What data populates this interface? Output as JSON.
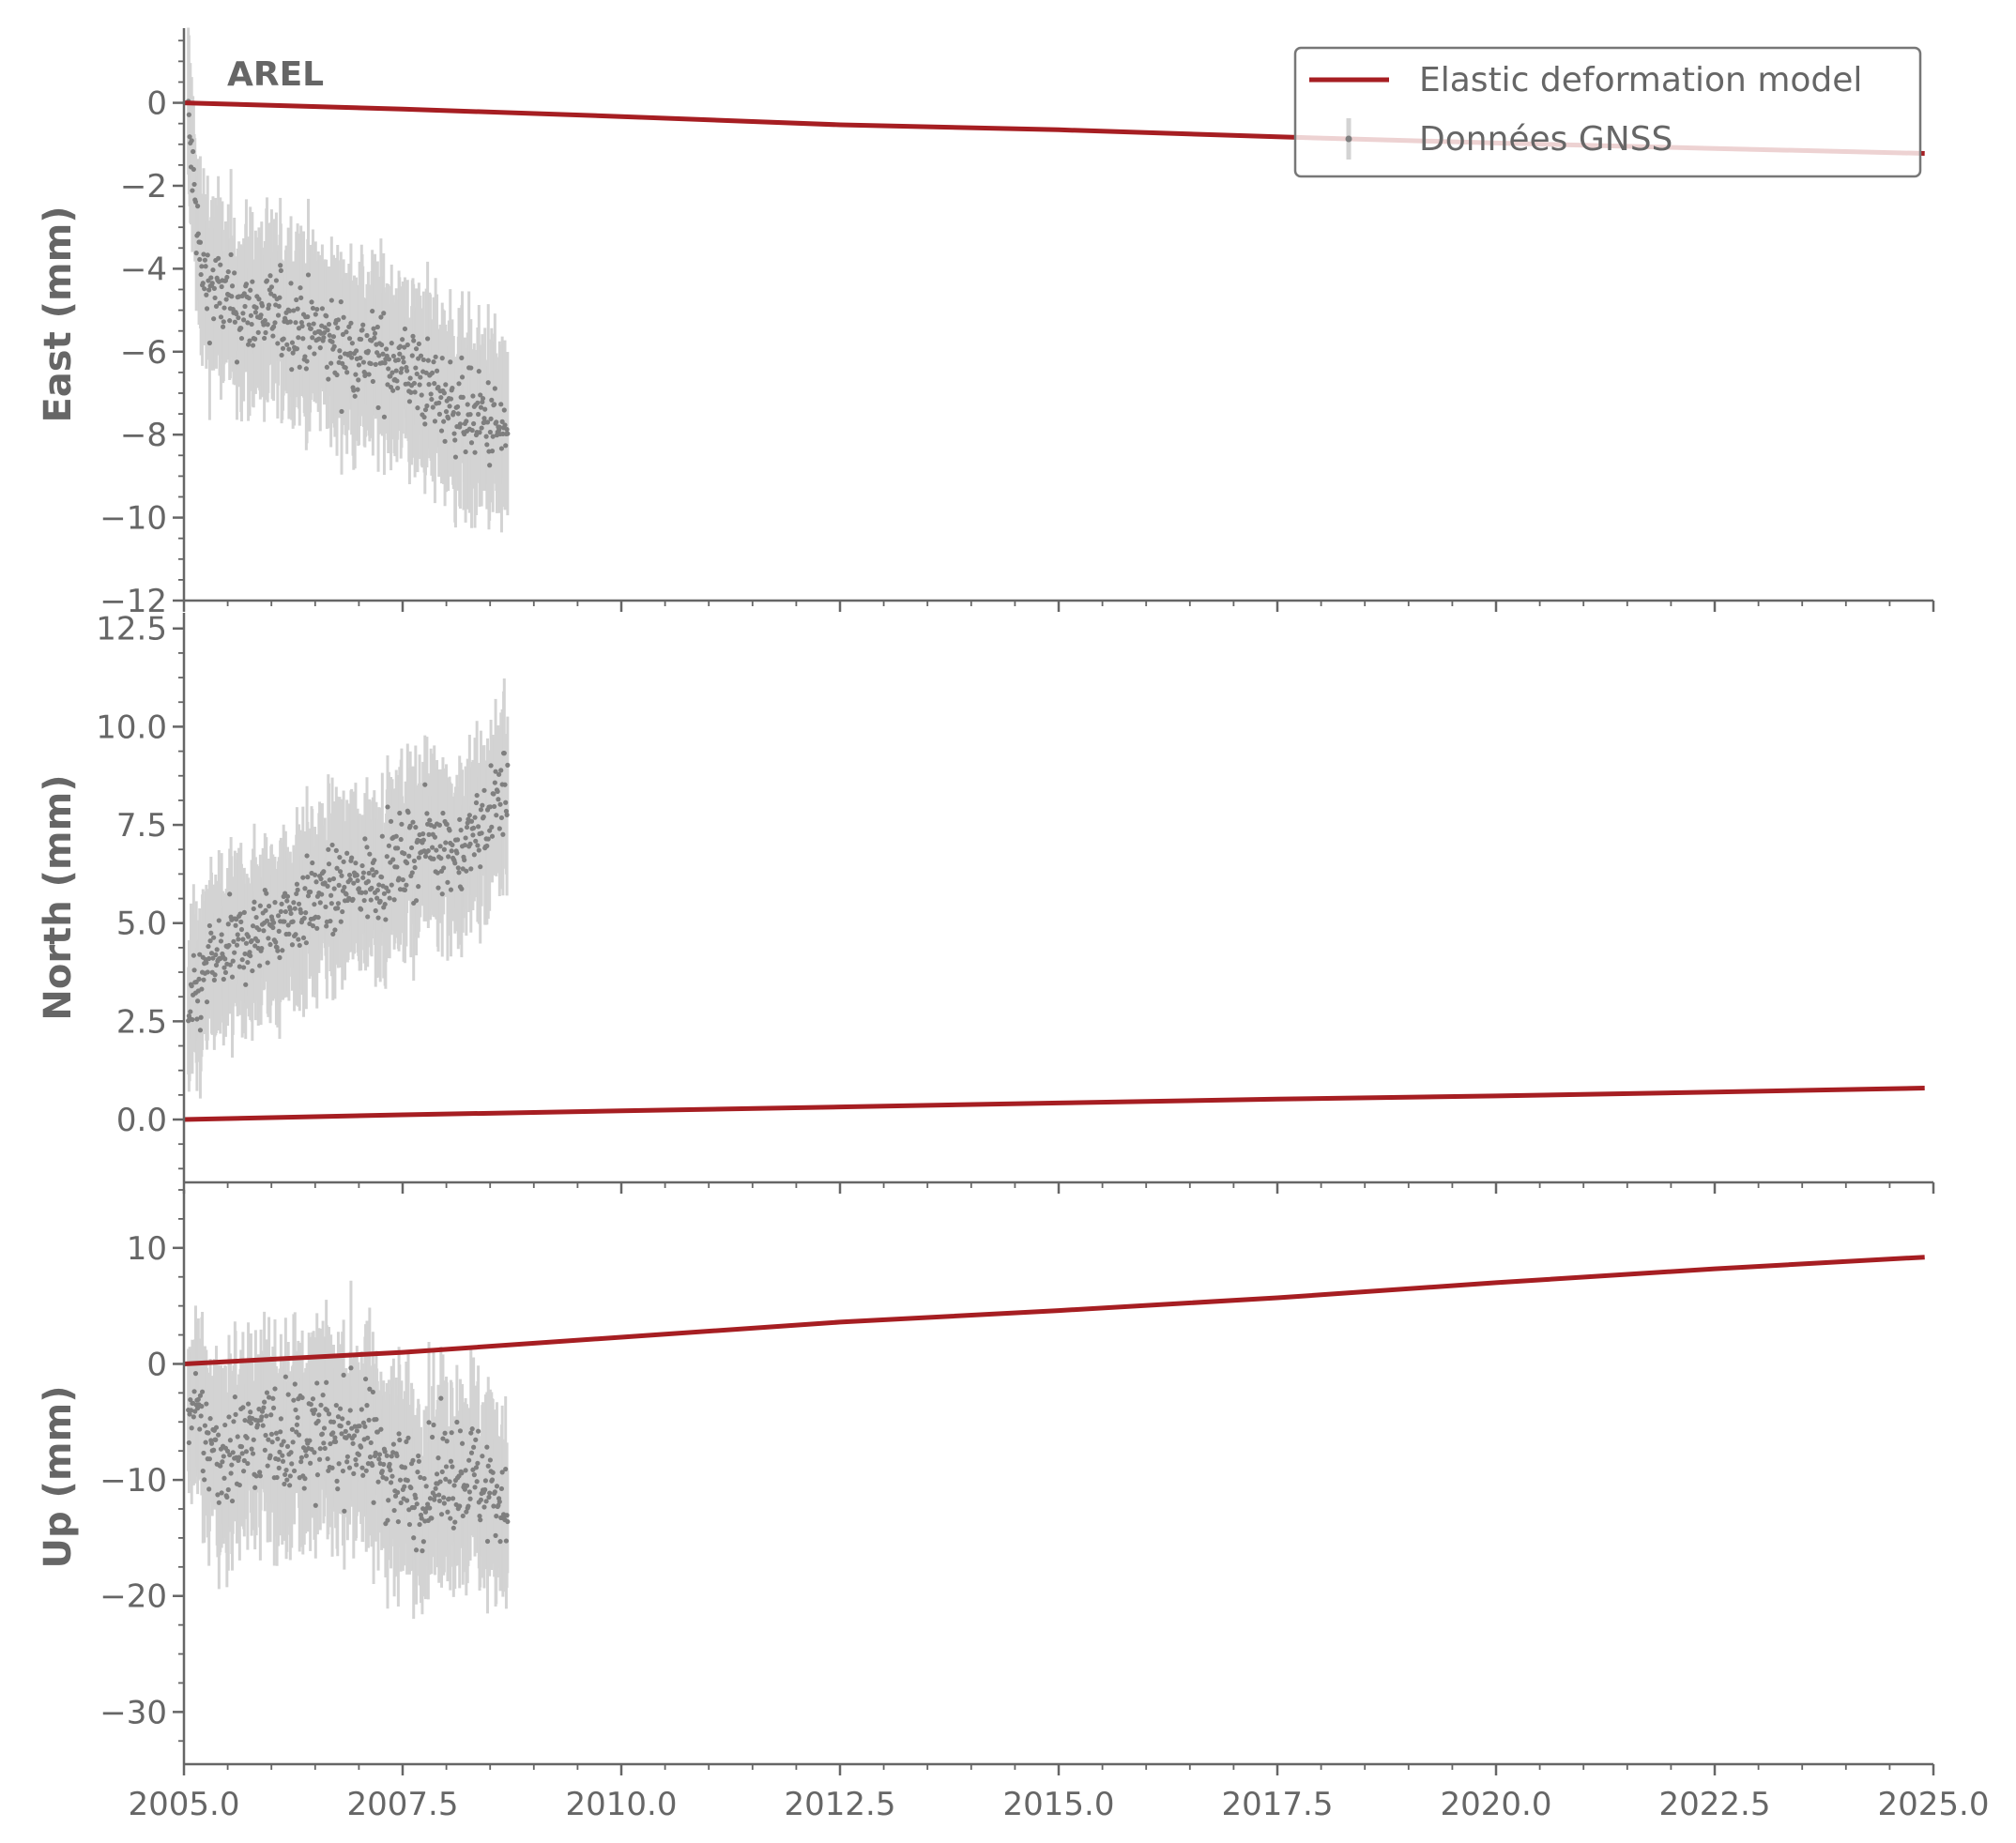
{
  "station_label": "AREL",
  "legend": {
    "model_label": "Elastic deformation model",
    "data_label": "Données GNSS"
  },
  "colors": {
    "model": "#a61e22",
    "data_point": "#7f7f7f",
    "error_bar": "#d3d3d3",
    "axis": "#666666",
    "text": "#666666"
  },
  "chart_data": [
    {
      "type": "line",
      "ylabel": "East (mm)",
      "xlim": [
        2005.0,
        2025.0
      ],
      "ylim": [
        -12,
        1.8
      ],
      "yticks": [
        0,
        -2,
        -4,
        -6,
        -8,
        -10,
        -12
      ],
      "ytick_labels": [
        "0",
        "−2",
        "−4",
        "−6",
        "−8",
        "−10",
        "−12"
      ],
      "series": [
        {
          "name": "Elastic deformation model",
          "kind": "line",
          "x": [
            2005.0,
            2007.5,
            2010.0,
            2012.5,
            2015.0,
            2017.5,
            2020.0,
            2022.5,
            2024.9
          ],
          "y": [
            0.0,
            -0.15,
            -0.33,
            -0.53,
            -0.65,
            -0.82,
            -0.97,
            -1.1,
            -1.22
          ]
        },
        {
          "name": "Données GNSS",
          "kind": "errorbar",
          "x_range": [
            2005.05,
            2008.7
          ],
          "trend": [
            [
              2005.05,
              -0.5
            ],
            [
              2005.2,
              -4.2
            ],
            [
              2005.6,
              -5.0
            ],
            [
              2006.2,
              -5.2
            ],
            [
              2006.8,
              -5.9
            ],
            [
              2007.5,
              -6.3
            ],
            [
              2008.0,
              -7.2
            ],
            [
              2008.7,
              -8.0
            ]
          ],
          "scatter": 0.9,
          "error": 1.6
        }
      ]
    },
    {
      "type": "line",
      "ylabel": "North (mm)",
      "xlim": [
        2005.0,
        2025.0
      ],
      "ylim": [
        -1.6,
        12.9
      ],
      "yticks": [
        12.5,
        10.0,
        7.5,
        5.0,
        2.5,
        0.0
      ],
      "ytick_labels": [
        "12.5",
        "10.0",
        "7.5",
        "5.0",
        "2.5",
        "0.0"
      ],
      "series": [
        {
          "name": "Elastic deformation model",
          "kind": "line",
          "x": [
            2005.0,
            2007.5,
            2010.0,
            2012.5,
            2015.0,
            2017.5,
            2020.0,
            2022.5,
            2024.9
          ],
          "y": [
            0.0,
            0.12,
            0.22,
            0.32,
            0.42,
            0.52,
            0.6,
            0.7,
            0.8
          ]
        },
        {
          "name": "Données GNSS",
          "kind": "errorbar",
          "x_range": [
            2005.05,
            2008.7
          ],
          "trend": [
            [
              2005.05,
              2.5
            ],
            [
              2005.3,
              4.0
            ],
            [
              2005.9,
              4.8
            ],
            [
              2006.5,
              5.6
            ],
            [
              2007.2,
              6.2
            ],
            [
              2007.8,
              7.1
            ],
            [
              2008.2,
              6.8
            ],
            [
              2008.7,
              8.5
            ]
          ],
          "scatter": 0.9,
          "error": 1.6
        }
      ]
    },
    {
      "type": "line",
      "ylabel": "Up (mm)",
      "xlim": [
        2005.0,
        2025.0
      ],
      "ylim": [
        -34.5,
        15
      ],
      "yticks": [
        10,
        0,
        -10,
        -20,
        -30
      ],
      "ytick_labels": [
        "10",
        "0",
        "−10",
        "−20",
        "−30"
      ],
      "xticks": [
        2005.0,
        2007.5,
        2010.0,
        2012.5,
        2015.0,
        2017.5,
        2020.0,
        2022.5,
        2025.0
      ],
      "xtick_labels": [
        "2005.0",
        "2007.5",
        "2010.0",
        "2012.5",
        "2015.0",
        "2017.5",
        "2020.0",
        "2022.5",
        "2025.0"
      ],
      "series": [
        {
          "name": "Elastic deformation model",
          "kind": "line",
          "x": [
            2005.0,
            2007.5,
            2010.0,
            2012.5,
            2015.0,
            2017.5,
            2020.0,
            2022.5,
            2024.9
          ],
          "y": [
            0.0,
            1.0,
            2.3,
            3.6,
            4.6,
            5.7,
            7.0,
            8.2,
            9.2
          ]
        },
        {
          "name": "Données GNSS",
          "kind": "errorbar",
          "x_range": [
            2005.05,
            2008.7
          ],
          "trend": [
            [
              2005.05,
              -4.0
            ],
            [
              2005.4,
              -8.0
            ],
            [
              2005.9,
              -6.0
            ],
            [
              2006.5,
              -6.5
            ],
            [
              2007.0,
              -6.0
            ],
            [
              2007.6,
              -11.0
            ],
            [
              2008.2,
              -9.0
            ],
            [
              2008.7,
              -12.0
            ]
          ],
          "scatter": 4.0,
          "error": 6.0
        }
      ]
    }
  ]
}
